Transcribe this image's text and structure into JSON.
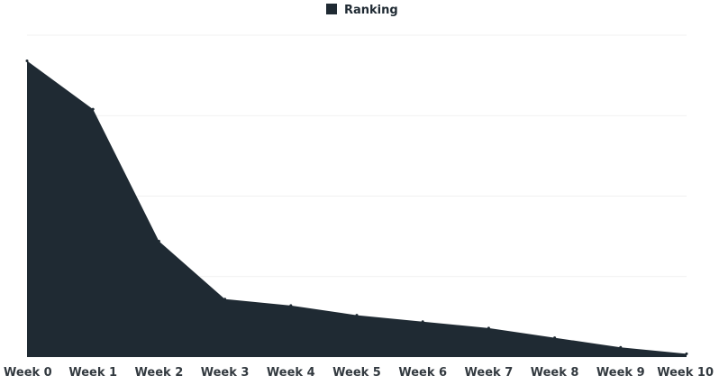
{
  "chart_data": {
    "type": "area",
    "categories": [
      "Week 0",
      "Week 1",
      "Week 2",
      "Week 3",
      "Week 4",
      "Week 5",
      "Week 6",
      "Week 7",
      "Week 8",
      "Week 9",
      "Week 10"
    ],
    "series": [
      {
        "name": "Ranking",
        "color": "#1f2a33",
        "values": [
          92,
          77,
          36,
          18,
          16,
          13,
          11,
          9,
          6,
          3,
          1
        ]
      }
    ],
    "ylim": [
      0,
      100
    ],
    "grid": true,
    "legend": "top-center",
    "y_axis_labels_shown": false
  }
}
